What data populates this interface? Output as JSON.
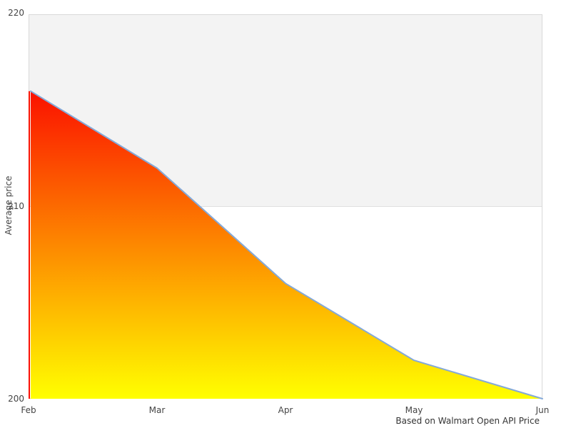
{
  "chart_data": {
    "type": "area",
    "title": "",
    "xlabel": "",
    "ylabel": "Average price",
    "categories": [
      "Feb",
      "Mar",
      "Apr",
      "May",
      "Jun"
    ],
    "values": [
      216,
      212,
      206,
      202,
      200
    ],
    "ylim": [
      200,
      220
    ],
    "yticks": [
      220,
      210,
      200
    ],
    "ytick_labels": [
      "220",
      "210",
      "200"
    ],
    "legend": "none",
    "grid": "horizontal gridline at 210; shaded band from 210 to 220",
    "caption": "Based on Walmart Open API Price",
    "colors": {
      "area_gradient_top": "#fb1100",
      "area_gradient_bottom": "#ffff00",
      "line": "#84a9d8",
      "left_edge_accent": "#fb1100",
      "plot_band": "#f3f3f3",
      "plot_border": "#d9d9d9",
      "gridline": "#e0e0e0",
      "text": "#444444",
      "caption_text": "#333333"
    }
  }
}
